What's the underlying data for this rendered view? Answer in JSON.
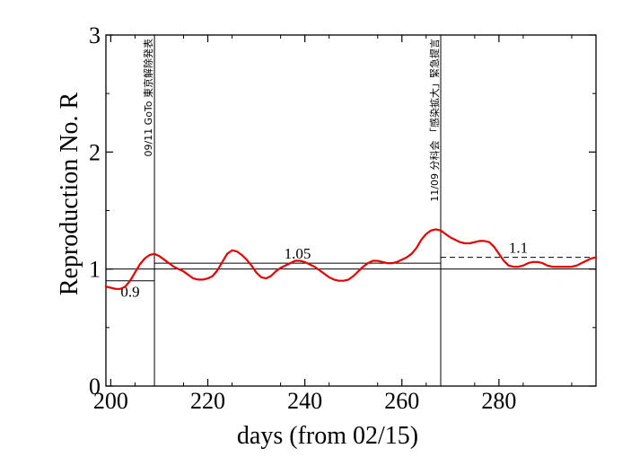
{
  "chart_data": {
    "type": "line",
    "title": "",
    "xlabel": "days (from 02/15)",
    "ylabel": "Reproduction No.  R",
    "xlim": [
      199,
      300
    ],
    "ylim": [
      0,
      3
    ],
    "x_ticks": [
      200,
      220,
      240,
      260,
      280
    ],
    "y_ticks": [
      0,
      1,
      2,
      3
    ],
    "grid": false,
    "series_color": "#e00000",
    "series": [
      {
        "x": [
          199,
          200,
          201,
          202,
          203,
          204,
          205,
          206,
          207,
          208,
          209,
          210,
          211,
          212,
          213,
          214,
          215,
          216,
          217,
          218,
          219,
          220,
          221,
          222,
          223,
          224,
          225,
          226,
          227,
          228,
          229,
          230,
          231,
          232,
          233,
          234,
          235,
          236,
          237,
          238,
          239,
          240,
          241,
          242,
          243,
          244,
          245,
          246,
          247,
          248,
          249,
          250,
          251,
          252,
          253,
          254,
          255,
          256,
          257,
          258,
          259,
          260,
          261,
          262,
          263,
          264,
          265,
          266,
          267,
          268,
          269,
          270,
          271,
          272,
          273,
          274,
          275,
          276,
          277,
          278,
          279,
          280,
          281,
          282,
          283,
          284,
          285,
          286,
          287,
          288,
          289,
          290,
          291,
          292,
          293,
          294,
          295,
          296,
          297,
          298,
          299,
          300
        ],
        "y": [
          0.85,
          0.84,
          0.83,
          0.83,
          0.85,
          0.9,
          0.97,
          1.04,
          1.09,
          1.12,
          1.13,
          1.11,
          1.08,
          1.05,
          1.02,
          1.0,
          0.98,
          0.95,
          0.92,
          0.91,
          0.91,
          0.92,
          0.94,
          0.99,
          1.06,
          1.13,
          1.16,
          1.15,
          1.12,
          1.08,
          1.03,
          0.97,
          0.93,
          0.92,
          0.94,
          0.98,
          1.01,
          1.03,
          1.05,
          1.07,
          1.07,
          1.06,
          1.04,
          1.02,
          0.99,
          0.96,
          0.93,
          0.91,
          0.9,
          0.9,
          0.91,
          0.94,
          0.98,
          1.02,
          1.05,
          1.07,
          1.07,
          1.06,
          1.05,
          1.05,
          1.06,
          1.08,
          1.1,
          1.13,
          1.18,
          1.25,
          1.3,
          1.33,
          1.34,
          1.33,
          1.3,
          1.27,
          1.25,
          1.23,
          1.22,
          1.22,
          1.23,
          1.24,
          1.24,
          1.23,
          1.19,
          1.13,
          1.07,
          1.03,
          1.02,
          1.02,
          1.03,
          1.05,
          1.06,
          1.06,
          1.05,
          1.03,
          1.02,
          1.02,
          1.02,
          1.02,
          1.02,
          1.03,
          1.05,
          1.07,
          1.09,
          1.1
        ]
      }
    ],
    "reference_lines": [
      {
        "y": 1.0,
        "x_from": 199,
        "x_to": 300,
        "style": "solid"
      },
      {
        "y": 0.9,
        "x_from": 199,
        "x_to": 209,
        "style": "solid",
        "label": "0.9"
      },
      {
        "y": 1.05,
        "x_from": 209,
        "x_to": 268,
        "style": "solid",
        "label": "1.05"
      },
      {
        "y": 1.1,
        "x_from": 268,
        "x_to": 300,
        "style": "dashed",
        "label": "1.1"
      }
    ],
    "events": [
      {
        "x": 209,
        "label": "09/11 GoTo 東京解除発表"
      },
      {
        "x": 268,
        "label": "11/09 分科会 「感染拡大」緊急提言"
      }
    ]
  }
}
